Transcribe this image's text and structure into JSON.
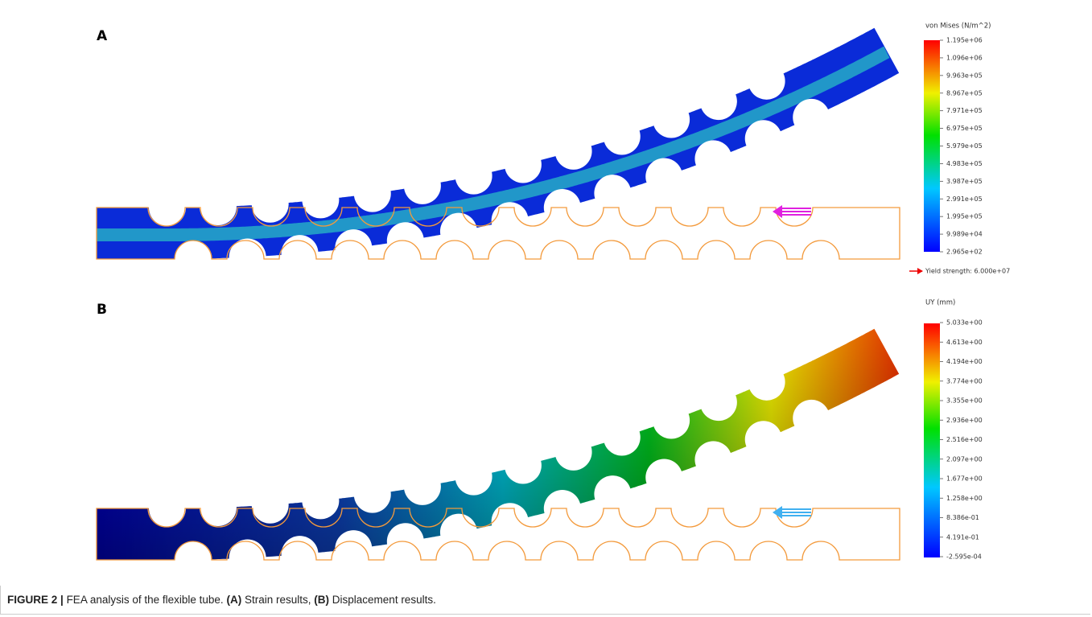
{
  "panels": [
    {
      "label": "A",
      "legend": {
        "title": "von Mises (N/m^2)",
        "ticks": [
          "1.195e+06",
          "1.096e+06",
          "9.963e+05",
          "8.967e+05",
          "7.971e+05",
          "6.975e+05",
          "5.979e+05",
          "4.983e+05",
          "3.987e+05",
          "2.991e+05",
          "1.995e+05",
          "9.989e+04",
          "2.965e+02"
        ],
        "note": "Yield strength: 6.000e+07"
      }
    },
    {
      "label": "B",
      "legend": {
        "title": "UY (mm)",
        "ticks": [
          "5.033e+00",
          "4.613e+00",
          "4.194e+00",
          "3.774e+00",
          "3.355e+00",
          "2.936e+00",
          "2.516e+00",
          "2.097e+00",
          "1.677e+00",
          "1.258e+00",
          "8.386e-01",
          "4.191e-01",
          "-2.595e-04"
        ]
      }
    }
  ],
  "caption": {
    "segments": [
      {
        "text": "FIGURE 2 |",
        "bold": true
      },
      {
        "text": "FEA analysis of the flexible tube.",
        "bold": false
      },
      {
        "text": "(A)",
        "bold": true
      },
      {
        "text": "Strain results,",
        "bold": false
      },
      {
        "text": "(B)",
        "bold": true
      },
      {
        "text": "Displacement results.",
        "bold": false
      }
    ]
  }
}
